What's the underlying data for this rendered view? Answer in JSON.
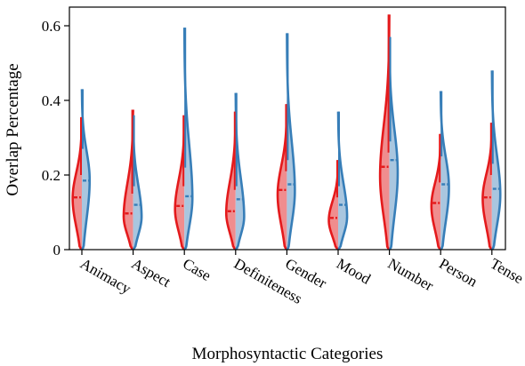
{
  "chart_data": {
    "type": "violin",
    "split": true,
    "xlabel": "Morphosyntactic Categories",
    "ylabel": "Overlap Percentage",
    "ylim": [
      0,
      0.65
    ],
    "yticks": [
      0,
      0.2,
      0.4,
      0.6
    ],
    "ytick_labels": [
      "0",
      "0.2",
      "0.4",
      "0.6"
    ],
    "categories": [
      "Animacy",
      "Aspect",
      "Case",
      "Definiteness",
      "Gender",
      "Mood",
      "Number",
      "Person",
      "Tense"
    ],
    "colors": {
      "left_line": "#e41a1c",
      "left_fill": "#f08d8e",
      "right_line": "#377eb8",
      "right_fill": "#a9c6df"
    },
    "violins": [
      {
        "category": "Animacy",
        "left": {
          "min": 0.0,
          "max": 0.355,
          "median": 0.14,
          "mode": 0.14,
          "width": 1.0
        },
        "right": {
          "min": 0.0,
          "max": 0.43,
          "median": 0.185,
          "mode": 0.19,
          "width": 0.85
        }
      },
      {
        "category": "Aspect",
        "left": {
          "min": 0.0,
          "max": 0.375,
          "median": 0.097,
          "mode": 0.09,
          "width": 1.0
        },
        "right": {
          "min": 0.0,
          "max": 0.36,
          "median": 0.12,
          "mode": 0.09,
          "width": 0.9
        }
      },
      {
        "category": "Case",
        "left": {
          "min": 0.0,
          "max": 0.36,
          "median": 0.117,
          "mode": 0.11,
          "width": 1.0
        },
        "right": {
          "min": 0.0,
          "max": 0.595,
          "median": 0.143,
          "mode": 0.14,
          "width": 0.85
        }
      },
      {
        "category": "Definiteness",
        "left": {
          "min": 0.0,
          "max": 0.37,
          "median": 0.103,
          "mode": 0.1,
          "width": 1.0
        },
        "right": {
          "min": 0.0,
          "max": 0.42,
          "median": 0.135,
          "mode": 0.09,
          "width": 0.9
        }
      },
      {
        "category": "Gender",
        "left": {
          "min": 0.0,
          "max": 0.39,
          "median": 0.16,
          "mode": 0.15,
          "width": 1.0
        },
        "right": {
          "min": 0.0,
          "max": 0.58,
          "median": 0.175,
          "mode": 0.16,
          "width": 0.85
        }
      },
      {
        "category": "Mood",
        "left": {
          "min": 0.0,
          "max": 0.24,
          "median": 0.085,
          "mode": 0.08,
          "width": 1.0
        },
        "right": {
          "min": 0.0,
          "max": 0.37,
          "median": 0.12,
          "mode": 0.09,
          "width": 0.95
        }
      },
      {
        "category": "Number",
        "left": {
          "min": 0.0,
          "max": 0.63,
          "median": 0.222,
          "mode": 0.2,
          "width": 1.0
        },
        "right": {
          "min": 0.0,
          "max": 0.57,
          "median": 0.24,
          "mode": 0.21,
          "width": 0.9
        }
      },
      {
        "category": "Person",
        "left": {
          "min": 0.0,
          "max": 0.31,
          "median": 0.125,
          "mode": 0.12,
          "width": 1.0
        },
        "right": {
          "min": 0.0,
          "max": 0.425,
          "median": 0.175,
          "mode": 0.17,
          "width": 0.9
        }
      },
      {
        "category": "Tense",
        "left": {
          "min": 0.0,
          "max": 0.34,
          "median": 0.14,
          "mode": 0.14,
          "width": 1.0
        },
        "right": {
          "min": 0.0,
          "max": 0.48,
          "median": 0.163,
          "mode": 0.15,
          "width": 0.9
        }
      }
    ]
  }
}
